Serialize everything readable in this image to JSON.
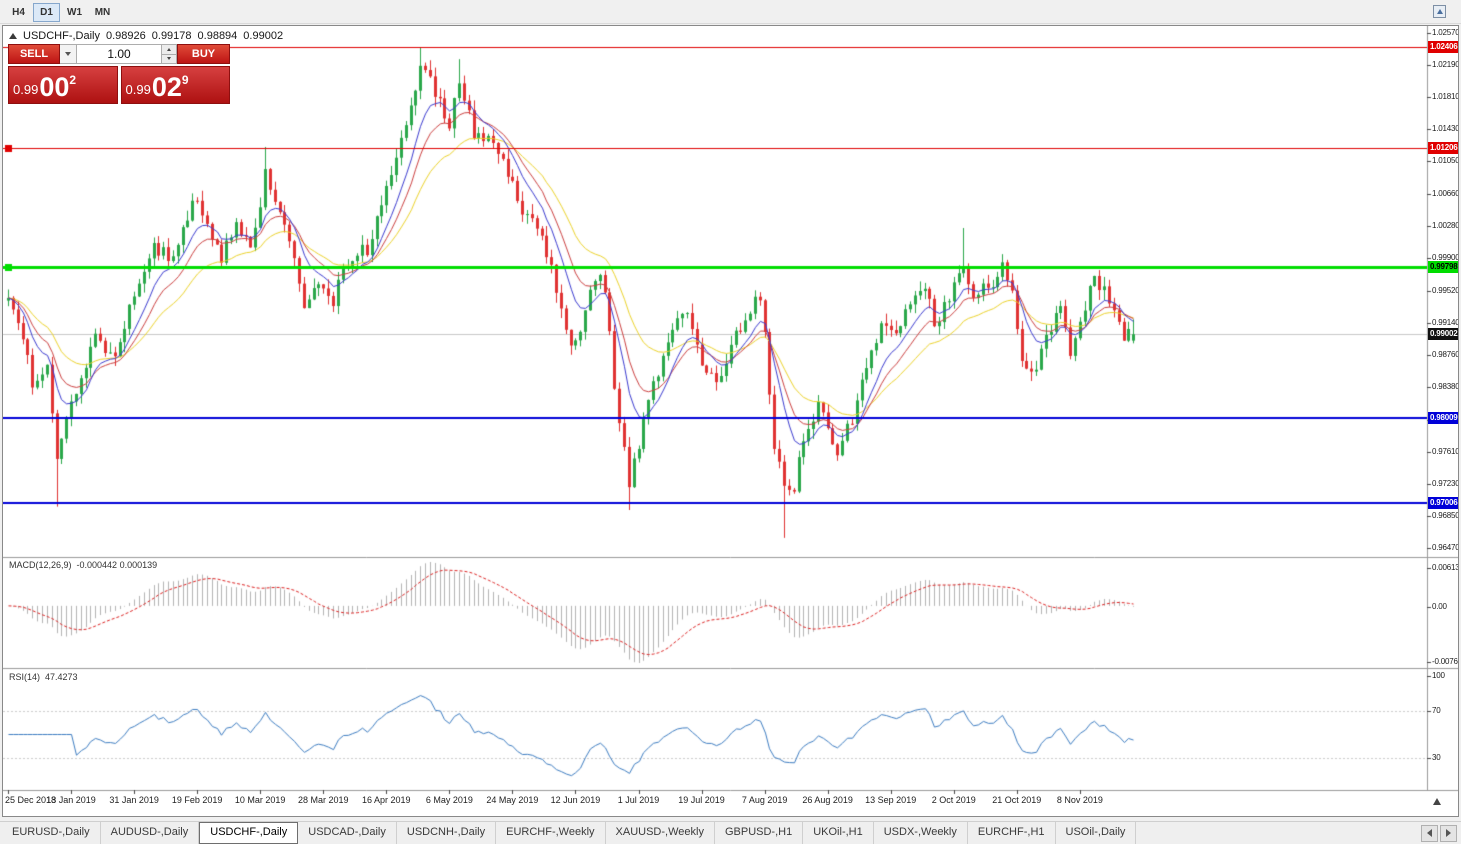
{
  "toolbar": {
    "timeframes": [
      "H4",
      "D1",
      "W1",
      "MN"
    ],
    "active_timeframe": "D1"
  },
  "chart_header": {
    "symbol": "USDCHF-,Daily",
    "open": "0.98926",
    "high": "0.99178",
    "low": "0.98894",
    "close": "0.99002"
  },
  "trade_panel": {
    "sell_label": "SELL",
    "buy_label": "BUY",
    "volume": "1.00",
    "sell_price": {
      "prefix": "0.99",
      "big": "00",
      "sup": "2"
    },
    "buy_price": {
      "prefix": "0.99",
      "big": "02",
      "sup": "9"
    }
  },
  "chart_data": {
    "type": "candlestick",
    "title": "USDCHF-,Daily",
    "y_axis_ticks": [
      "1.02570",
      "1.02190",
      "1.01810",
      "1.01430",
      "1.01050",
      "1.00660",
      "1.00280",
      "0.99900",
      "0.99520",
      "0.99140",
      "0.98760",
      "0.98380",
      "0.97990",
      "0.97610",
      "0.97230",
      "0.96850",
      "0.96470"
    ],
    "y_range": [
      0.9647,
      1.0257
    ],
    "x_labels": [
      "25 Dec 2018",
      "13 Jan 2019",
      "31 Jan 2019",
      "19 Feb 2019",
      "10 Mar 2019",
      "28 Mar 2019",
      "16 Apr 2019",
      "6 May 2019",
      "24 May 2019",
      "12 Jun 2019",
      "1 Jul 2019",
      "19 Jul 2019",
      "7 Aug 2019",
      "26 Aug 2019",
      "13 Sep 2019",
      "2 Oct 2019",
      "21 Oct 2019",
      "8 Nov 2019"
    ],
    "bars_per_label": 13,
    "num_candles": 233,
    "last_candle": {
      "o": 0.98926,
      "h": 0.99178,
      "l": 0.98894,
      "c": 0.99002
    },
    "current_price": {
      "value": 0.99002,
      "label": "0.99002",
      "bg": "#111111",
      "fg": "#ffffff"
    },
    "levels": [
      {
        "price": 1.02406,
        "label": "1.02406",
        "color": "#e00000",
        "fg": "#ffffff",
        "thickness": 1,
        "handle": false
      },
      {
        "price": 1.01206,
        "label": "1.01206",
        "color": "#e00000",
        "fg": "#ffffff",
        "thickness": 1,
        "handle": true
      },
      {
        "price": 0.99798,
        "label": "0.99798",
        "color": "#00dd00",
        "fg": "#000000",
        "thickness": 3,
        "handle": true
      },
      {
        "price": 0.98009,
        "label": "0.98009",
        "color": "#0000d8",
        "fg": "#ffffff",
        "thickness": 2,
        "handle": false
      },
      {
        "price": 0.97006,
        "label": "0.97006",
        "color": "#0000d8",
        "fg": "#ffffff",
        "thickness": 2,
        "handle": false
      }
    ],
    "price_anchors": [
      [
        0,
        0.994
      ],
      [
        3,
        0.9895
      ],
      [
        5,
        0.9845
      ],
      [
        8,
        0.9868
      ],
      [
        10,
        0.9745
      ],
      [
        11,
        0.9782
      ],
      [
        14,
        0.9838
      ],
      [
        18,
        0.9898
      ],
      [
        22,
        0.9872
      ],
      [
        26,
        0.9948
      ],
      [
        30,
        1.0002
      ],
      [
        34,
        0.9988
      ],
      [
        38,
        1.0058
      ],
      [
        41,
        1.0032
      ],
      [
        44,
        0.9992
      ],
      [
        47,
        1.0028
      ],
      [
        50,
        0.9998
      ],
      [
        53,
        1.0088
      ],
      [
        55,
        1.0062
      ],
      [
        58,
        1.0008
      ],
      [
        61,
        0.9928
      ],
      [
        64,
        0.9968
      ],
      [
        67,
        0.9942
      ],
      [
        70,
        0.9988
      ],
      [
        74,
        1.0002
      ],
      [
        78,
        1.0072
      ],
      [
        82,
        1.0148
      ],
      [
        85,
        1.0218
      ],
      [
        88,
        1.0188
      ],
      [
        91,
        1.0152
      ],
      [
        93,
        1.0198
      ],
      [
        96,
        1.0138
      ],
      [
        100,
        1.0132
      ],
      [
        103,
        1.0088
      ],
      [
        106,
        1.0048
      ],
      [
        109,
        1.0022
      ],
      [
        112,
        0.9988
      ],
      [
        114,
        0.9922
      ],
      [
        116,
        0.9878
      ],
      [
        118,
        0.9912
      ],
      [
        121,
        0.9972
      ],
      [
        123,
        0.9958
      ],
      [
        125,
        0.9842
      ],
      [
        127,
        0.9762
      ],
      [
        128,
        0.9728
      ],
      [
        131,
        0.9792
      ],
      [
        134,
        0.9858
      ],
      [
        137,
        0.9908
      ],
      [
        140,
        0.9928
      ],
      [
        143,
        0.9872
      ],
      [
        146,
        0.9842
      ],
      [
        149,
        0.9888
      ],
      [
        152,
        0.9918
      ],
      [
        155,
        0.9948
      ],
      [
        156,
        0.9902
      ],
      [
        158,
        0.9772
      ],
      [
        160,
        0.9718
      ],
      [
        162,
        0.9722
      ],
      [
        164,
        0.9778
      ],
      [
        167,
        0.9818
      ],
      [
        169,
        0.9792
      ],
      [
        171,
        0.9758
      ],
      [
        174,
        0.9802
      ],
      [
        177,
        0.9862
      ],
      [
        180,
        0.9908
      ],
      [
        183,
        0.9898
      ],
      [
        186,
        0.9942
      ],
      [
        189,
        0.9958
      ],
      [
        191,
        0.9912
      ],
      [
        194,
        0.9942
      ],
      [
        197,
        0.9988
      ],
      [
        199,
        0.9948
      ],
      [
        202,
        0.9958
      ],
      [
        205,
        0.9978
      ],
      [
        207,
        0.9952
      ],
      [
        209,
        0.9872
      ],
      [
        211,
        0.9852
      ],
      [
        214,
        0.9892
      ],
      [
        217,
        0.9932
      ],
      [
        219,
        0.9878
      ],
      [
        221,
        0.9918
      ],
      [
        224,
        0.9968
      ],
      [
        226,
        0.9952
      ],
      [
        228,
        0.9932
      ],
      [
        230,
        0.9898
      ],
      [
        232,
        0.99
      ]
    ],
    "spikes": [
      {
        "i": 10,
        "low": 0.9696
      },
      {
        "i": 53,
        "high": 1.0122
      },
      {
        "i": 85,
        "high": 1.024
      },
      {
        "i": 93,
        "high": 1.0226
      },
      {
        "i": 125,
        "low": 0.9838
      },
      {
        "i": 128,
        "low": 0.9692
      },
      {
        "i": 160,
        "low": 0.9659
      },
      {
        "i": 197,
        "high": 1.0026
      }
    ],
    "colors": {
      "up": "#2aa84a",
      "down": "#e03232",
      "ma_fast": "#3a3ad0",
      "ma_mid": "#cc3f3f",
      "ma_slow": "#ecd32b",
      "macd_hist": "#b4b4b4",
      "macd_signal": "#dd2222",
      "rsi": "#3d7dc2"
    },
    "indicators": {
      "macd": {
        "name": "MACD(12,26,9)",
        "values": "-0.000442 0.000139",
        "axis_labels": [
          "0.00613",
          "0.00",
          "-0.00761"
        ]
      },
      "rsi": {
        "name": "RSI(14)",
        "value": "47.4273",
        "axis_labels": [
          "100",
          "70",
          "30"
        ],
        "levels": [
          70,
          30
        ]
      }
    }
  },
  "tab_bar": {
    "tabs": [
      "EURUSD-,Daily",
      "AUDUSD-,Daily",
      "USDCHF-,Daily",
      "USDCAD-,Daily",
      "USDCNH-,Daily",
      "EURCHF-,Weekly",
      "XAUUSD-,Weekly",
      "GBPUSD-,H1",
      "UKOil-,H1",
      "USDX-,Weekly",
      "EURCHF-,H1",
      "USOil-,Daily"
    ],
    "active_index": 2
  }
}
